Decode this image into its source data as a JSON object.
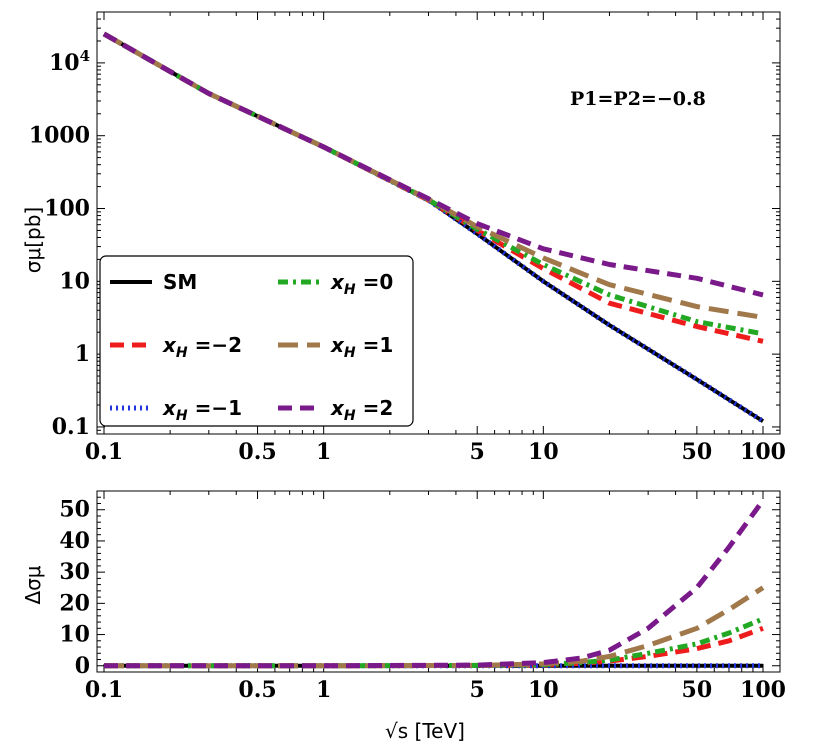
{
  "chart_data": [
    {
      "type": "line",
      "scale": "log-log",
      "xlabel": "√s [TeV]",
      "ylabel": "σμ[pb]",
      "xlim": [
        0.1,
        100
      ],
      "ylim": [
        0.08,
        50000
      ],
      "x_ticks": [
        0.1,
        0.5,
        1,
        5,
        10,
        50,
        100
      ],
      "x_tick_labels": [
        "0.1",
        "0.5",
        "1",
        "5",
        "10",
        "50",
        "100"
      ],
      "y_ticks": [
        0.1,
        1,
        10,
        100,
        1000,
        10000
      ],
      "y_tick_labels": [
        "0.1",
        "1",
        "10",
        "100",
        "1000",
        "10^4"
      ],
      "annotation": "P1=P2=−0.8",
      "legend_position": "bottom-left",
      "x": [
        0.1,
        0.3,
        1,
        3,
        5,
        10,
        20,
        50,
        100
      ],
      "series": [
        {
          "name": "SM",
          "label": "SM",
          "color": "#000000",
          "dash": "solid",
          "values": [
            25000,
            3800,
            700,
            130,
            45,
            10,
            2.5,
            0.45,
            0.12
          ]
        },
        {
          "name": "xH=-2",
          "label": "xH=−2",
          "color": "#ee1c1c",
          "dash": "dashed",
          "values": [
            25000,
            3800,
            700,
            130,
            50,
            15,
            5,
            2.4,
            1.5
          ]
        },
        {
          "name": "xH=-1",
          "label": "xH=−1",
          "color": "#2233dd",
          "dash": "dotted",
          "values": [
            25000,
            3800,
            700,
            130,
            45,
            10,
            2.5,
            0.45,
            0.12
          ]
        },
        {
          "name": "xH=0",
          "label": "xH=0",
          "color": "#22a822",
          "dash": "dashdot",
          "values": [
            25000,
            3800,
            700,
            132,
            52,
            17,
            6.5,
            2.8,
            1.9
          ]
        },
        {
          "name": "xH=1",
          "label": "xH=1",
          "color": "#a0784a",
          "dash": "longdash",
          "values": [
            25000,
            3800,
            700,
            134,
            56,
            21,
            9,
            4.5,
            3.2
          ]
        },
        {
          "name": "xH=2",
          "label": "xH=2",
          "color": "#7a1a8a",
          "dash": "dashed",
          "values": [
            25000,
            3800,
            700,
            136,
            62,
            28,
            17,
            11,
            6.5
          ]
        }
      ]
    },
    {
      "type": "line",
      "scale": "log-x",
      "xlabel": "√s [TeV]",
      "ylabel": "Δσμ",
      "xlim": [
        0.1,
        100
      ],
      "ylim": [
        -2,
        56
      ],
      "x_ticks": [
        0.1,
        0.5,
        1,
        5,
        10,
        50,
        100
      ],
      "x_tick_labels": [
        "0.1",
        "0.5",
        "1",
        "5",
        "10",
        "50",
        "100"
      ],
      "y_ticks": [
        0,
        10,
        20,
        30,
        40,
        50
      ],
      "y_tick_labels": [
        "0",
        "10",
        "20",
        "30",
        "40",
        "50"
      ],
      "x": [
        0.1,
        1,
        5,
        10,
        15,
        20,
        30,
        50,
        70,
        100
      ],
      "series": [
        {
          "name": "SM",
          "color": "#000000",
          "dash": "solid",
          "values": [
            0,
            0,
            0,
            0,
            0,
            0,
            0,
            0,
            0,
            0
          ]
        },
        {
          "name": "xH=-2",
          "color": "#ee1c1c",
          "dash": "dashed",
          "values": [
            0,
            0,
            0.1,
            0.3,
            0.8,
            1.5,
            3,
            5.5,
            8,
            12
          ]
        },
        {
          "name": "xH=-1",
          "color": "#2233dd",
          "dash": "dotted",
          "values": [
            0,
            0,
            0,
            0,
            0,
            0,
            0,
            0,
            0,
            0
          ]
        },
        {
          "name": "xH=0",
          "color": "#22a822",
          "dash": "dashdot",
          "values": [
            0,
            0,
            0.1,
            0.4,
            1,
            1.8,
            4,
            7,
            10.5,
            15
          ]
        },
        {
          "name": "xH=1",
          "color": "#a0784a",
          "dash": "longdash",
          "values": [
            0,
            0,
            0.1,
            0.6,
            1.5,
            3,
            6.5,
            12,
            18,
            25
          ]
        },
        {
          "name": "xH=2",
          "color": "#7a1a8a",
          "dash": "dashed",
          "values": [
            0,
            0,
            0.2,
            1,
            2.5,
            5,
            12,
            25,
            38,
            53
          ]
        }
      ]
    }
  ]
}
